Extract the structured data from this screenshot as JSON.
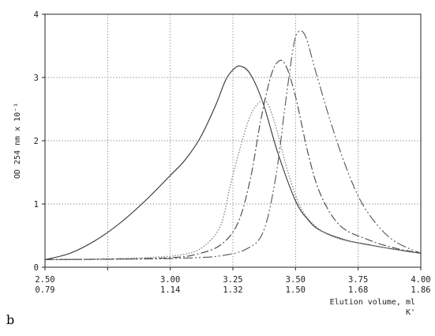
{
  "chart_data": {
    "type": "line",
    "panel_label": "b",
    "ylabel": "OD 254 nm x 10⁻¹",
    "xlabel": "Elution volume, ml",
    "x2label": "K'",
    "xlim": [
      2.5,
      4.0
    ],
    "ylim": [
      0,
      4
    ],
    "grid": true,
    "x_ticks": [
      {
        "v": 2.5,
        "label": "2.50",
        "k_label": "0.79"
      },
      {
        "v": 2.75,
        "label": "",
        "k_label": ""
      },
      {
        "v": 3.0,
        "label": "3.00",
        "k_label": "1.14"
      },
      {
        "v": 3.25,
        "label": "3.25",
        "k_label": "1.32"
      },
      {
        "v": 3.5,
        "label": "3.50",
        "k_label": "1.50"
      },
      {
        "v": 3.75,
        "label": "3.75",
        "k_label": "1.68"
      },
      {
        "v": 4.0,
        "label": "4.00",
        "k_label": "1.86"
      }
    ],
    "y_ticks": [
      {
        "v": 0,
        "label": "0"
      },
      {
        "v": 1,
        "label": "1"
      },
      {
        "v": 2,
        "label": "2"
      },
      {
        "v": 3,
        "label": "3"
      },
      {
        "v": 4,
        "label": "4"
      }
    ],
    "series": [
      {
        "style": "solid",
        "color": "#333333",
        "points": [
          [
            2.5,
            0.12
          ],
          [
            2.6,
            0.22
          ],
          [
            2.7,
            0.42
          ],
          [
            2.8,
            0.7
          ],
          [
            2.9,
            1.05
          ],
          [
            3.0,
            1.45
          ],
          [
            3.06,
            1.7
          ],
          [
            3.12,
            2.05
          ],
          [
            3.18,
            2.55
          ],
          [
            3.22,
            2.95
          ],
          [
            3.25,
            3.12
          ],
          [
            3.28,
            3.18
          ],
          [
            3.32,
            3.05
          ],
          [
            3.37,
            2.6
          ],
          [
            3.43,
            1.8
          ],
          [
            3.5,
            1.05
          ],
          [
            3.55,
            0.75
          ],
          [
            3.6,
            0.58
          ],
          [
            3.7,
            0.43
          ],
          [
            3.8,
            0.35
          ],
          [
            3.9,
            0.28
          ],
          [
            4.0,
            0.22
          ]
        ]
      },
      {
        "style": "dotted",
        "color": "#8c8c8c",
        "points": [
          [
            2.5,
            0.12
          ],
          [
            2.7,
            0.13
          ],
          [
            2.9,
            0.15
          ],
          [
            3.05,
            0.2
          ],
          [
            3.13,
            0.32
          ],
          [
            3.2,
            0.65
          ],
          [
            3.24,
            1.3
          ],
          [
            3.28,
            1.9
          ],
          [
            3.32,
            2.4
          ],
          [
            3.36,
            2.62
          ],
          [
            3.39,
            2.58
          ],
          [
            3.43,
            2.1
          ],
          [
            3.47,
            1.5
          ],
          [
            3.52,
            0.95
          ],
          [
            3.58,
            0.65
          ],
          [
            3.65,
            0.48
          ],
          [
            3.75,
            0.38
          ],
          [
            3.9,
            0.28
          ],
          [
            4.0,
            0.22
          ]
        ]
      },
      {
        "style": "dash-dot",
        "color": "#444444",
        "points": [
          [
            2.5,
            0.12
          ],
          [
            2.8,
            0.13
          ],
          [
            3.0,
            0.15
          ],
          [
            3.1,
            0.2
          ],
          [
            3.2,
            0.35
          ],
          [
            3.27,
            0.7
          ],
          [
            3.32,
            1.4
          ],
          [
            3.36,
            2.3
          ],
          [
            3.4,
            3.0
          ],
          [
            3.43,
            3.25
          ],
          [
            3.46,
            3.2
          ],
          [
            3.5,
            2.7
          ],
          [
            3.55,
            1.8
          ],
          [
            3.6,
            1.15
          ],
          [
            3.68,
            0.65
          ],
          [
            3.8,
            0.42
          ],
          [
            3.9,
            0.3
          ],
          [
            4.0,
            0.22
          ]
        ]
      },
      {
        "style": "dash-dot-dot",
        "color": "#555555",
        "points": [
          [
            2.5,
            0.12
          ],
          [
            2.9,
            0.13
          ],
          [
            3.1,
            0.15
          ],
          [
            3.2,
            0.18
          ],
          [
            3.3,
            0.28
          ],
          [
            3.37,
            0.55
          ],
          [
            3.42,
            1.4
          ],
          [
            3.46,
            2.6
          ],
          [
            3.49,
            3.45
          ],
          [
            3.51,
            3.72
          ],
          [
            3.54,
            3.65
          ],
          [
            3.58,
            3.1
          ],
          [
            3.64,
            2.3
          ],
          [
            3.7,
            1.6
          ],
          [
            3.76,
            1.05
          ],
          [
            3.83,
            0.65
          ],
          [
            3.9,
            0.4
          ],
          [
            4.0,
            0.22
          ]
        ]
      }
    ]
  }
}
